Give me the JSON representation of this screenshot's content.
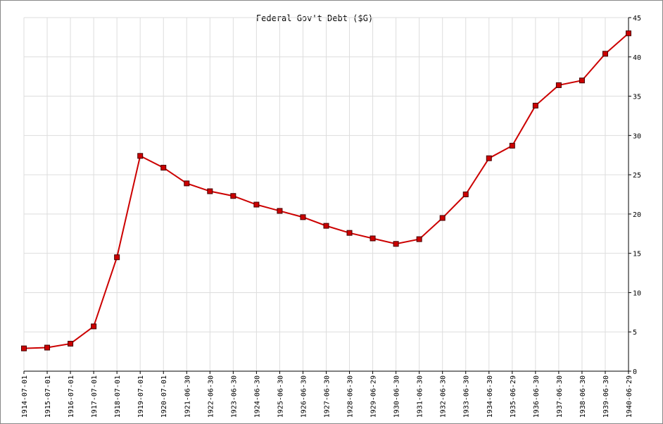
{
  "chart_data": {
    "type": "line",
    "title": "Federal Gov't Debt ($G)",
    "categories": [
      "1914-07-01",
      "1915-07-01",
      "1916-07-01",
      "1917-07-01",
      "1918-07-01",
      "1919-07-01",
      "1920-07-01",
      "1921-06-30",
      "1922-06-30",
      "1923-06-30",
      "1924-06-30",
      "1925-06-30",
      "1926-06-30",
      "1927-06-30",
      "1928-06-30",
      "1929-06-29",
      "1930-06-30",
      "1931-06-30",
      "1932-06-30",
      "1933-06-30",
      "1934-06-30",
      "1935-06-29",
      "1936-06-30",
      "1937-06-30",
      "1938-06-30",
      "1939-06-30",
      "1940-06-29"
    ],
    "values": [
      2.9,
      3.0,
      3.5,
      5.7,
      14.5,
      27.4,
      25.9,
      23.9,
      22.9,
      22.3,
      21.2,
      20.4,
      19.6,
      18.5,
      17.6,
      16.9,
      16.2,
      16.8,
      19.5,
      22.5,
      27.1,
      28.7,
      33.8,
      36.4,
      37.0,
      40.4,
      43.0
    ],
    "color": "#cc0000",
    "ylim": [
      0,
      45
    ],
    "yticks": [
      0,
      5,
      10,
      15,
      20,
      25,
      30,
      35,
      40,
      45
    ],
    "grid": true
  }
}
